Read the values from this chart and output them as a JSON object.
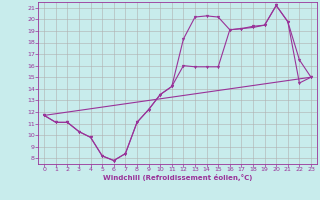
{
  "xlabel": "Windchill (Refroidissement éolien,°C)",
  "xlim": [
    -0.5,
    23.5
  ],
  "ylim": [
    7.5,
    21.5
  ],
  "xticks": [
    0,
    1,
    2,
    3,
    4,
    5,
    6,
    7,
    8,
    9,
    10,
    11,
    12,
    13,
    14,
    15,
    16,
    17,
    18,
    19,
    20,
    21,
    22,
    23
  ],
  "yticks": [
    8,
    9,
    10,
    11,
    12,
    13,
    14,
    15,
    16,
    17,
    18,
    19,
    20,
    21
  ],
  "bg_color": "#c8ecec",
  "grid_color": "#b0b0b0",
  "line_color": "#993399",
  "line1_x": [
    0,
    1,
    2,
    3,
    4,
    5,
    6,
    7,
    8,
    9,
    10,
    11,
    12,
    13,
    14,
    15,
    16,
    17,
    18,
    19,
    20,
    21,
    22,
    23
  ],
  "line1_y": [
    11.7,
    11.1,
    11.1,
    10.3,
    9.8,
    8.2,
    7.8,
    8.4,
    11.1,
    12.2,
    13.5,
    14.2,
    18.3,
    20.2,
    20.3,
    20.2,
    19.1,
    19.2,
    19.3,
    19.5,
    21.2,
    19.8,
    16.5,
    15.0
  ],
  "line2_x": [
    0,
    1,
    2,
    3,
    4,
    5,
    6,
    7,
    8,
    9,
    10,
    11,
    12,
    13,
    14,
    15,
    16,
    17,
    18,
    19,
    20,
    21,
    22,
    23
  ],
  "line2_y": [
    11.7,
    11.1,
    11.1,
    10.3,
    9.8,
    8.2,
    7.8,
    8.4,
    11.1,
    12.2,
    13.5,
    14.2,
    16.0,
    15.9,
    15.9,
    15.9,
    19.1,
    19.2,
    19.4,
    19.5,
    21.2,
    19.8,
    14.5,
    15.0
  ],
  "line3_x": [
    0,
    23
  ],
  "line3_y": [
    11.7,
    15.0
  ]
}
